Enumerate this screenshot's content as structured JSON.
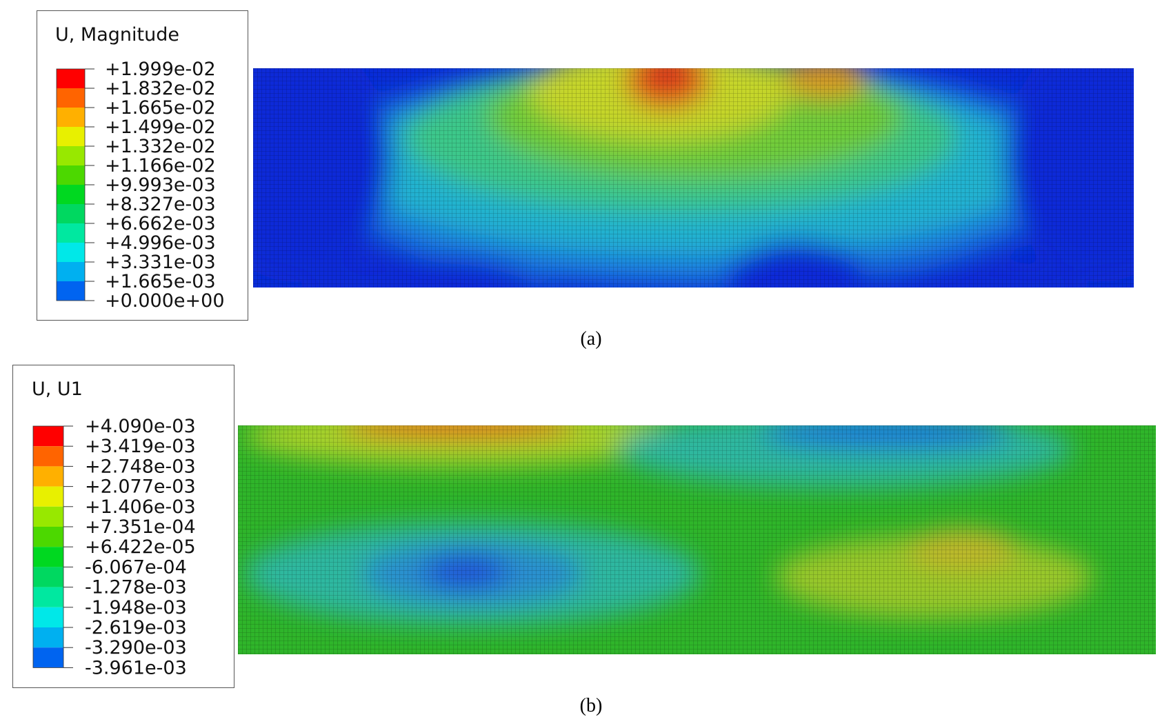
{
  "panels": [
    {
      "legend_title": "U, Magnitude",
      "legend_labels": [
        "+1.999e-02",
        "+1.832e-02",
        "+1.665e-02",
        "+1.499e-02",
        "+1.332e-02",
        "+1.166e-02",
        "+9.993e-03",
        "+8.327e-03",
        "+6.662e-03",
        "+4.996e-03",
        "+3.331e-03",
        "+1.665e-03",
        "+0.000e+00"
      ],
      "caption": "(a)"
    },
    {
      "legend_title": "U, U1",
      "legend_labels": [
        "+4.090e-03",
        "+3.419e-03",
        "+2.748e-03",
        "+2.077e-03",
        "+1.406e-03",
        "+7.351e-04",
        "+6.422e-05",
        "-6.067e-04",
        "-1.278e-03",
        "-1.948e-03",
        "-2.619e-03",
        "-3.290e-03",
        "-3.961e-03"
      ],
      "caption": "(b)"
    }
  ]
}
